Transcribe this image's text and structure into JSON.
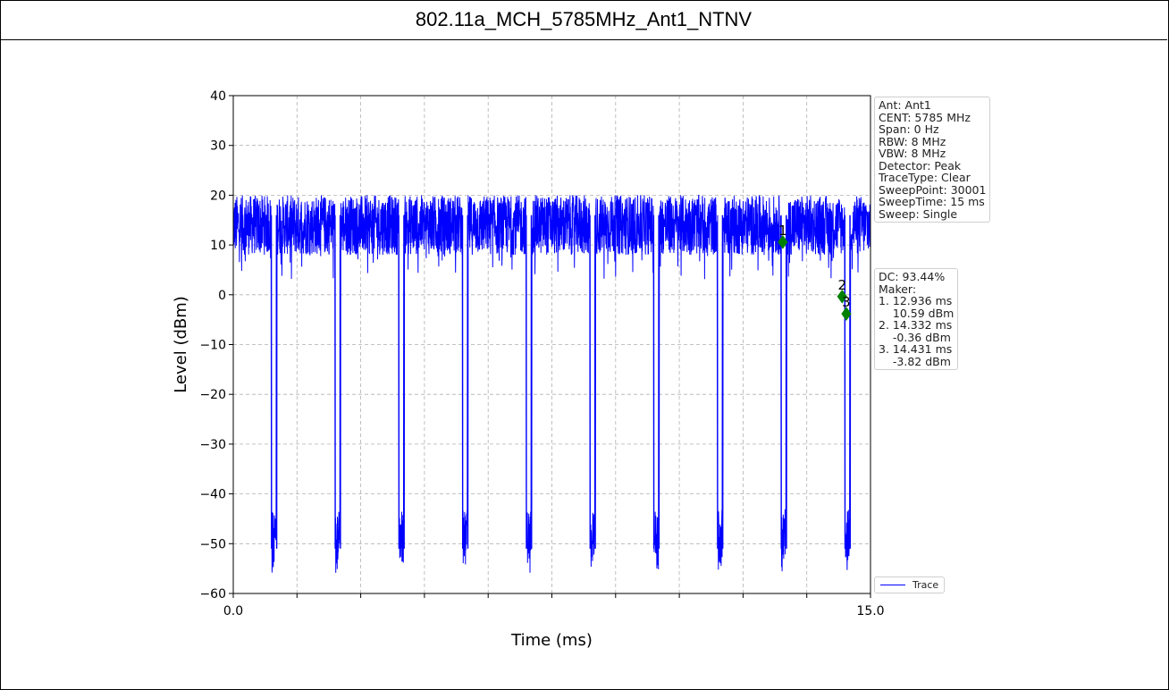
{
  "title": "802.11a_MCH_5785MHz_Ant1_NTNV",
  "settings_lines": [
    "Ant: Ant1",
    "CENT: 5785 MHz",
    "Span: 0 Hz",
    "RBW: 8 MHz",
    "VBW: 8 MHz",
    "Detector: Peak",
    "TraceType: Clear",
    "SweepPoint: 30001",
    "SweepTime: 15 ms",
    "Sweep: Single"
  ],
  "marker_lines": [
    "DC: 93.44%",
    "Maker:",
    "1. 12.936 ms",
    "    10.59 dBm",
    "2. 14.332 ms",
    "    -0.36 dBm",
    "3. 14.431 ms",
    "    -3.82 dBm"
  ],
  "colors": {
    "trace": "#0000ff",
    "marker": "#008000",
    "grid": "#b0b0b0"
  },
  "chart_data": {
    "type": "line",
    "xlabel": "Time (ms)",
    "ylabel": "Level (dBm)",
    "xlim": [
      0,
      15
    ],
    "ylim": [
      -60,
      40
    ],
    "x_tick_labels": [
      {
        "value": 0,
        "label": "0.0"
      },
      {
        "value": 15,
        "label": "15.0"
      }
    ],
    "x_minor_ticks": [
      1.5,
      3,
      4.5,
      6,
      7.5,
      9,
      10.5,
      12,
      13.5
    ],
    "y_ticks": [
      40,
      30,
      20,
      10,
      0,
      -10,
      -20,
      -30,
      -40,
      -50,
      -60
    ],
    "grid": true,
    "legend": {
      "position": "lower-right",
      "entries": [
        "Trace"
      ]
    },
    "series": [
      {
        "name": "Trace",
        "burst_on_level_range": [
          8,
          20
        ],
        "burst_off_level_range": [
          -54,
          -43
        ],
        "gap_start_times_ms": [
          0.9,
          2.4,
          3.9,
          5.4,
          6.9,
          8.4,
          9.9,
          11.4,
          12.9,
          14.4
        ]
      }
    ],
    "markers": [
      {
        "label": "1",
        "x": 12.936,
        "y": 10.59
      },
      {
        "label": "2",
        "x": 14.332,
        "y": -0.36
      },
      {
        "label": "3",
        "x": 14.431,
        "y": -3.82
      }
    ]
  }
}
